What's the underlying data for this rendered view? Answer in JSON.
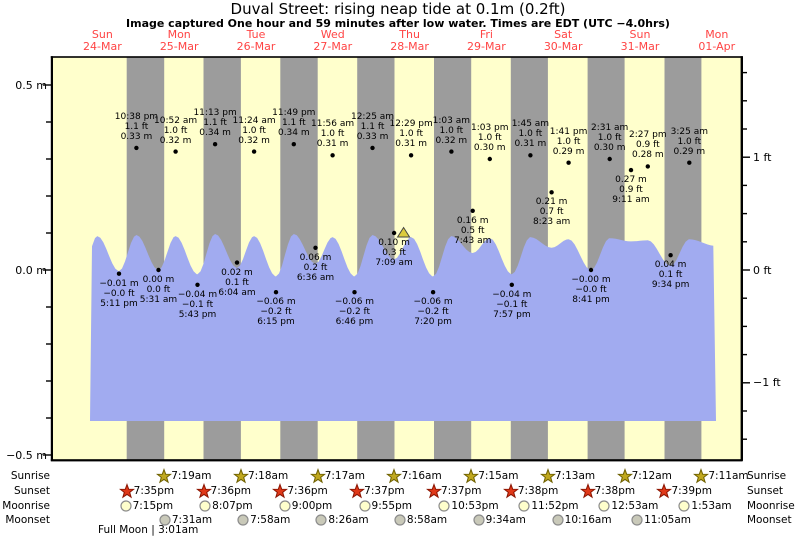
{
  "title": "Duval Street: rising neap tide at 0.1m (0.2ft)",
  "subtitle": "Image captured One hour and 59 minutes after low water. Times are EDT (UTC −4.0hrs)",
  "full_moon_note": "Full Moon | 3:01am",
  "colors": {
    "plot_bg": "#FFFFCC",
    "night_band": "#9C9C9C",
    "tide_fill": "#A1ABF0",
    "day_label": "#FF4444",
    "axis": "#000000",
    "sunrise_star": "#C0A81E",
    "sunrise_star_edge": "#6E6000",
    "sunset_star": "#E03818",
    "sunset_star_edge": "#8A1400",
    "moonrise_fill": "#FFFFCC",
    "moonset_fill": "#C9C9B9",
    "moon_edge": "#8C8C8C",
    "marker_fill": "#DCCB3E",
    "marker_edge": "#444444"
  },
  "days": [
    {
      "name": "Sun",
      "date": "24-Mar"
    },
    {
      "name": "Mon",
      "date": "25-Mar"
    },
    {
      "name": "Tue",
      "date": "26-Mar"
    },
    {
      "name": "Wed",
      "date": "27-Mar"
    },
    {
      "name": "Thu",
      "date": "28-Mar"
    },
    {
      "name": "Fri",
      "date": "29-Mar"
    },
    {
      "name": "Sat",
      "date": "30-Mar"
    },
    {
      "name": "Sun",
      "date": "31-Mar"
    },
    {
      "name": "Mon",
      "date": "01-Apr"
    }
  ],
  "y_axis": {
    "left_labels": [
      {
        "text": "0.5 m",
        "m": 0.5
      },
      {
        "text": "0.0 m",
        "m": 0.0
      },
      {
        "text": "−0.5 m",
        "m": -0.5
      }
    ],
    "right_labels": [
      {
        "text": "1 ft",
        "m": 0.3048
      },
      {
        "text": "0 ft",
        "m": 0.0
      },
      {
        "text": "−1 ft",
        "m": -0.3048
      }
    ]
  },
  "chart_data": {
    "type": "area",
    "title": "Duval Street tide height",
    "x_unit": "days since Sun 24-Mar 00:00 (EDT)",
    "y_units": [
      "m",
      "ft"
    ],
    "ylim_m": [
      -0.5,
      0.5
    ],
    "legend": "none",
    "tides": [
      {
        "kind": "low",
        "time": "5:11 pm",
        "m_label": "−0.01 m",
        "ft_label": "−0.0 ft",
        "m": -0.01,
        "t": 0.716
      },
      {
        "kind": "high",
        "time": "10:38 pm",
        "m_label": "0.33 m",
        "ft_label": "1.1 ft",
        "m": 0.33,
        "t": 0.9431
      },
      {
        "kind": "low",
        "time": "5:31 am",
        "m_label": "0.00 m",
        "ft_label": "0.0 ft",
        "m": 0.0,
        "t": 1.2299
      },
      {
        "kind": "high",
        "time": "10:52 am",
        "m_label": "0.32 m",
        "ft_label": "1.0 ft",
        "m": 0.32,
        "t": 1.4528
      },
      {
        "kind": "low",
        "time": "5:43 pm",
        "m_label": "−0.04 m",
        "ft_label": "−0.1 ft",
        "m": -0.04,
        "t": 1.7382
      },
      {
        "kind": "high",
        "time": "11:13 pm",
        "m_label": "0.34 m",
        "ft_label": "1.1 ft",
        "m": 0.34,
        "t": 1.9674
      },
      {
        "kind": "low",
        "time": "6:04 am",
        "m_label": "0.02 m",
        "ft_label": "0.1 ft",
        "m": 0.02,
        "t": 2.2528
      },
      {
        "kind": "high",
        "time": "11:24 am",
        "m_label": "0.32 m",
        "ft_label": "1.0 ft",
        "m": 0.32,
        "t": 2.475
      },
      {
        "kind": "low",
        "time": "6:15 pm",
        "m_label": "−0.06 m",
        "ft_label": "−0.2 ft",
        "m": -0.06,
        "t": 2.7604
      },
      {
        "kind": "high",
        "time": "11:49 pm",
        "m_label": "0.34 m",
        "ft_label": "1.1 ft",
        "m": 0.34,
        "t": 2.9924
      },
      {
        "kind": "low",
        "time": "6:36 am",
        "m_label": "0.06 m",
        "ft_label": "0.2 ft",
        "m": 0.06,
        "t": 3.275
      },
      {
        "kind": "high",
        "time": "11:56 am",
        "m_label": "0.31 m",
        "ft_label": "1.0 ft",
        "m": 0.31,
        "t": 3.4972
      },
      {
        "kind": "low",
        "time": "6:46 pm",
        "m_label": "−0.06 m",
        "ft_label": "−0.2 ft",
        "m": -0.06,
        "t": 3.782
      },
      {
        "kind": "high",
        "time": "12:25 am",
        "m_label": "0.33 m",
        "ft_label": "1.1 ft",
        "m": 0.33,
        "t": 4.0174
      },
      {
        "kind": "low",
        "time": "7:09 am",
        "m_label": "0.10 m",
        "ft_label": "0.3 ft",
        "m": 0.1,
        "t": 4.2979,
        "current": true
      },
      {
        "kind": "high",
        "time": "12:29 pm",
        "m_label": "0.31 m",
        "ft_label": "1.0 ft",
        "m": 0.31,
        "t": 4.5201
      },
      {
        "kind": "low",
        "time": "7:20 pm",
        "m_label": "−0.06 m",
        "ft_label": "−0.2 ft",
        "m": -0.06,
        "t": 4.8056
      },
      {
        "kind": "high",
        "time": "1:03 am",
        "m_label": "0.32 m",
        "ft_label": "1.0 ft",
        "m": 0.32,
        "t": 5.0438
      },
      {
        "kind": "low",
        "time": "7:43 am",
        "m_label": "0.16 m",
        "ft_label": "0.5 ft",
        "m": 0.16,
        "t": 5.3215
      },
      {
        "kind": "high",
        "time": "1:03 pm",
        "m_label": "0.30 m",
        "ft_label": "1.0 ft",
        "m": 0.3,
        "t": 5.5438
      },
      {
        "kind": "low",
        "time": "7:57 pm",
        "m_label": "−0.04 m",
        "ft_label": "−0.1 ft",
        "m": -0.04,
        "t": 5.8313
      },
      {
        "kind": "high",
        "time": "1:45 am",
        "m_label": "0.31 m",
        "ft_label": "1.0 ft",
        "m": 0.31,
        "t": 6.0729
      },
      {
        "kind": "low",
        "time": "8:23 am",
        "m_label": "0.21 m",
        "ft_label": "0.7 ft",
        "m": 0.21,
        "t": 6.3493
      },
      {
        "kind": "high",
        "time": "1:41 pm",
        "m_label": "0.29 m",
        "ft_label": "1.0 ft",
        "m": 0.29,
        "t": 6.5701
      },
      {
        "kind": "low",
        "time": "8:41 pm",
        "m_label": "−0.00 m",
        "ft_label": "−0.0 ft",
        "m": 0.0,
        "t": 6.8618
      },
      {
        "kind": "high",
        "time": "2:31 am",
        "m_label": "0.30 m",
        "ft_label": "1.0 ft",
        "m": 0.3,
        "t": 7.1049
      },
      {
        "kind": "low",
        "time": "9:11 am",
        "m_label": "0.27 m",
        "ft_label": "0.9 ft",
        "m": 0.27,
        "t": 7.3826
      },
      {
        "kind": "high",
        "time": "2:27 pm",
        "m_label": "0.28 m",
        "ft_label": "0.9 ft",
        "m": 0.28,
        "t": 7.6021
      },
      {
        "kind": "low",
        "time": "9:34 pm",
        "m_label": "0.04 m",
        "ft_label": "0.1 ft",
        "m": 0.04,
        "t": 7.8986
      },
      {
        "kind": "high",
        "time": "3:25 am",
        "m_label": "0.29 m",
        "ft_label": "1.0 ft",
        "m": 0.29,
        "t": 8.1424
      }
    ],
    "current_marker": {
      "time": "7:09 am",
      "m": 0.1,
      "t": 4.2979
    }
  },
  "astro": {
    "row_labels": [
      "Sunrise",
      "Sunset",
      "Moonrise",
      "Moonset"
    ],
    "sunrise": [
      {
        "time": "7:19am",
        "t": 1.3049
      },
      {
        "time": "7:18am",
        "t": 2.3042
      },
      {
        "time": "7:17am",
        "t": 3.3035
      },
      {
        "time": "7:16am",
        "t": 4.3028
      },
      {
        "time": "7:15am",
        "t": 5.3021
      },
      {
        "time": "7:13am",
        "t": 6.3007
      },
      {
        "time": "7:12am",
        "t": 7.3
      },
      {
        "time": "7:11am",
        "t": 8.2993
      }
    ],
    "sunset": [
      {
        "time": "7:35pm",
        "t": 0.816
      },
      {
        "time": "7:36pm",
        "t": 1.8167
      },
      {
        "time": "7:36pm",
        "t": 2.8167
      },
      {
        "time": "7:37pm",
        "t": 3.8174
      },
      {
        "time": "7:37pm",
        "t": 4.8174
      },
      {
        "time": "7:38pm",
        "t": 5.8181
      },
      {
        "time": "7:38pm",
        "t": 6.8181
      },
      {
        "time": "7:39pm",
        "t": 7.8188
      }
    ],
    "moonrise": [
      {
        "time": "7:15pm",
        "t": 0.8021
      },
      {
        "time": "8:07pm",
        "t": 1.8382
      },
      {
        "time": "9:00pm",
        "t": 2.875
      },
      {
        "time": "9:55pm",
        "t": 3.9132
      },
      {
        "time": "10:53pm",
        "t": 4.9535
      },
      {
        "time": "11:52pm",
        "t": 5.9944
      },
      {
        "time": "12:53am",
        "t": 7.0368
      },
      {
        "time": "1:53am",
        "t": 8.0785
      }
    ],
    "moonset": [
      {
        "time": "7:31am",
        "t": 1.3132
      },
      {
        "time": "7:58am",
        "t": 2.3319
      },
      {
        "time": "8:26am",
        "t": 3.3514
      },
      {
        "time": "8:58am",
        "t": 4.3736
      },
      {
        "time": "9:34am",
        "t": 5.3993
      },
      {
        "time": "10:16am",
        "t": 6.4278
      },
      {
        "time": "11:05am",
        "t": 7.4618
      }
    ]
  }
}
